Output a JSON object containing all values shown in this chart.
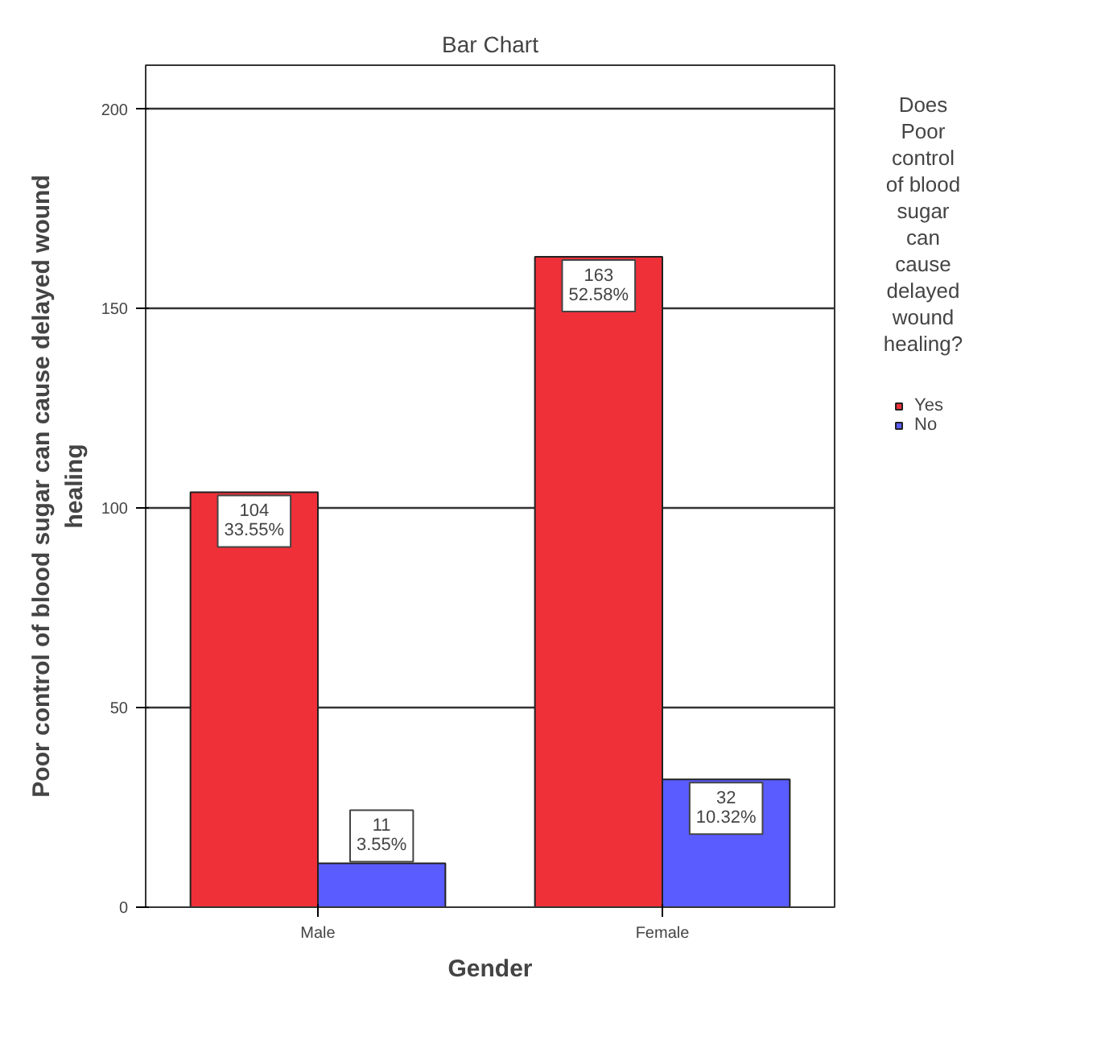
{
  "chart_data": {
    "type": "bar",
    "title": "Bar Chart",
    "xlabel": "Gender",
    "ylabel": "Poor control of blood sugar can cause delayed wound healing",
    "legend_title": "Does Poor control of blood sugar can cause delayed wound healing?",
    "categories": [
      "Male",
      "Female"
    ],
    "series": [
      {
        "name": "Yes",
        "color": "#ef3038",
        "values": [
          104,
          163
        ],
        "value_labels": [
          "104\n33.55%",
          "163\n52.58%"
        ]
      },
      {
        "name": "No",
        "color": "#5a5cff",
        "values": [
          11,
          32
        ],
        "value_labels": [
          "11\n3.55%",
          "32\n10.32%"
        ]
      }
    ],
    "ylim": [
      0,
      211
    ],
    "yticks": [
      0,
      50,
      100,
      150,
      200
    ],
    "grid": "y",
    "legend": "right"
  }
}
